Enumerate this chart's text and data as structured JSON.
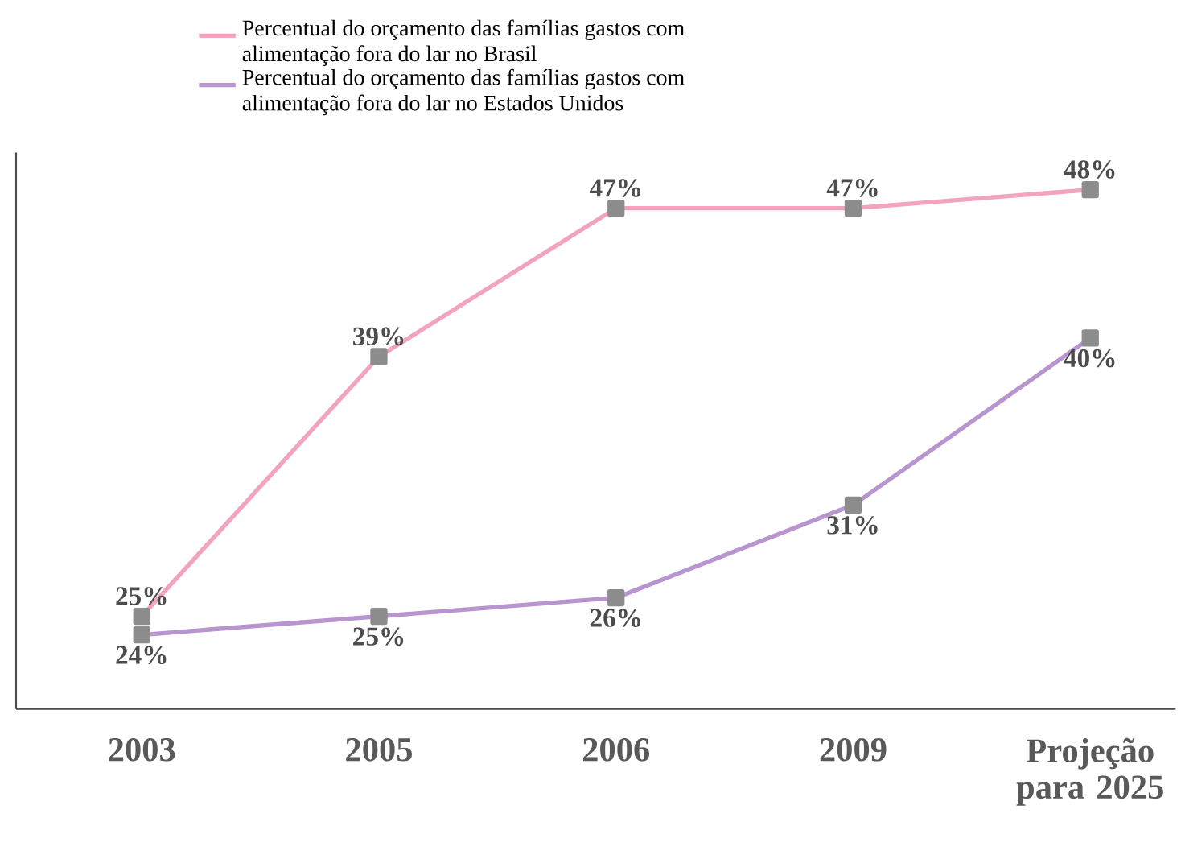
{
  "chart_data": {
    "type": "line",
    "categories": [
      "2003",
      "2005",
      "2006",
      "2009",
      "Projeção para 2025"
    ],
    "series": [
      {
        "name": "Percentual do orçamento das famílias gastos com alimentação fora do lar no Brasil",
        "color": "#f2a3c0",
        "values": [
          25,
          39,
          47,
          47,
          48
        ],
        "value_labels": [
          "25%",
          "39%",
          "47%",
          "47%",
          "48%"
        ]
      },
      {
        "name": "Percentual do orçamento das famílias gastos com alimentação fora do lar no Estados Unidos",
        "color": "#b995cf",
        "values": [
          24,
          25,
          26,
          31,
          40
        ],
        "value_labels": [
          "24%",
          "25%",
          "26%",
          "31%",
          "40%"
        ]
      }
    ],
    "ylim": [
      20,
      50
    ],
    "tick_labels": "x",
    "marker": "square",
    "line_style": "solid",
    "grid": false,
    "legend": "top left"
  }
}
